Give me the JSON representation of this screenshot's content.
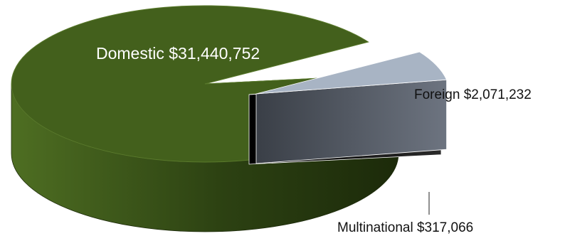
{
  "chart_data": {
    "type": "pie",
    "style": "3d-exploded",
    "slices": [
      {
        "label": "Domestic",
        "value": 31440752,
        "value_text": "$31,440,752",
        "color": "#43601c"
      },
      {
        "label": "Foreign",
        "value": 2071232,
        "value_text": "$2,071,232",
        "color": "#a8b4c4"
      },
      {
        "label": "Multinational",
        "value": 317066,
        "value_text": "$317,066",
        "color": "#111111"
      }
    ],
    "legend": "none",
    "title": ""
  }
}
